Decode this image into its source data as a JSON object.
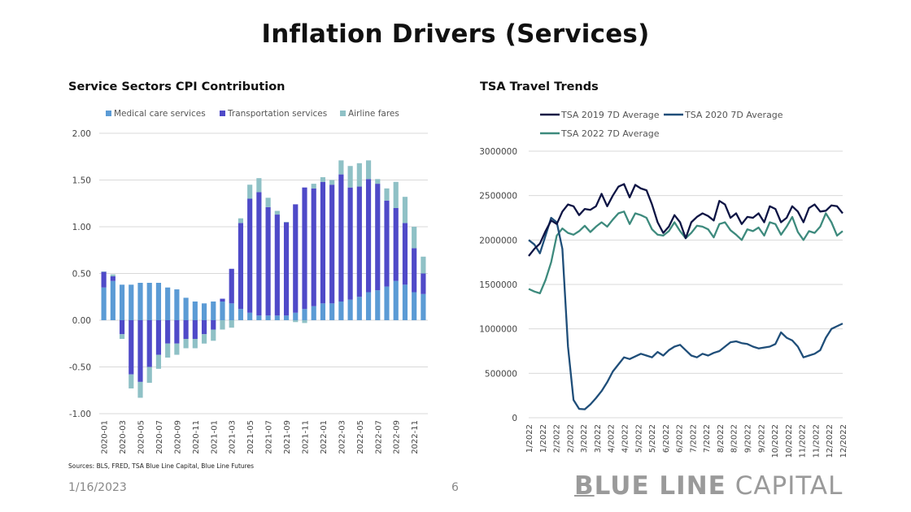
{
  "page": {
    "title": "Inflation Drivers (Services)",
    "sources": "Sources: BLS, FRED, TSA Blue Line Capital, Blue Line Futures",
    "date": "1/16/2023",
    "page_number": "6",
    "brand_bold": "BLUE LINE",
    "brand_light": "CAPITAL"
  },
  "colors": {
    "medical": "#5b9bd5",
    "transport": "#4f4ac8",
    "airline": "#8fc1c6",
    "tsa2019": "#0d1444",
    "tsa2020": "#1f4e79",
    "tsa2022": "#3d8a7d"
  },
  "chart_data": [
    {
      "type": "bar",
      "stacked": true,
      "title": "Service Sectors CPI Contribution",
      "ylim": [
        -1.0,
        2.0
      ],
      "yticks": [
        "2.00",
        "1.50",
        "1.00",
        "0.50",
        "0.00",
        "-0.50",
        "-1.00"
      ],
      "grid": true,
      "legend": "top",
      "categories": [
        "2020-01",
        "2020-02",
        "2020-03",
        "2020-04",
        "2020-05",
        "2020-06",
        "2020-07",
        "2020-08",
        "2020-09",
        "2020-10",
        "2020-11",
        "2020-12",
        "2021-01",
        "2021-02",
        "2021-03",
        "2021-04",
        "2021-05",
        "2021-06",
        "2021-07",
        "2021-08",
        "2021-09",
        "2021-10",
        "2021-11",
        "2021-12",
        "2022-01",
        "2022-02",
        "2022-03",
        "2022-04",
        "2022-05",
        "2022-06",
        "2022-07",
        "2022-08",
        "2022-09",
        "2022-10",
        "2022-11",
        "2022-12"
      ],
      "xtick_labels": [
        "2020-01",
        "2020-03",
        "2020-05",
        "2020-07",
        "2020-09",
        "2020-11",
        "2021-01",
        "2021-03",
        "2021-05",
        "2021-07",
        "2021-09",
        "2021-11",
        "2022-01",
        "2022-03",
        "2022-05",
        "2022-07",
        "2022-09",
        "2022-11"
      ],
      "series": [
        {
          "name": "Medical care services",
          "values": [
            0.35,
            0.42,
            0.38,
            0.38,
            0.4,
            0.4,
            0.4,
            0.35,
            0.33,
            0.24,
            0.2,
            0.18,
            0.2,
            0.2,
            0.18,
            0.12,
            0.08,
            0.05,
            0.05,
            0.05,
            0.05,
            0.08,
            0.12,
            0.15,
            0.18,
            0.18,
            0.2,
            0.22,
            0.25,
            0.3,
            0.32,
            0.36,
            0.42,
            0.38,
            0.3,
            0.28
          ]
        },
        {
          "name": "Transportation services",
          "values": [
            0.17,
            0.05,
            -0.15,
            -0.58,
            -0.66,
            -0.5,
            -0.37,
            -0.25,
            -0.25,
            -0.2,
            -0.2,
            -0.15,
            -0.1,
            0.03,
            0.37,
            0.92,
            1.22,
            1.32,
            1.16,
            1.08,
            1.0,
            1.16,
            1.3,
            1.26,
            1.3,
            1.27,
            1.36,
            1.2,
            1.18,
            1.21,
            1.14,
            0.92,
            0.78,
            0.66,
            0.47,
            0.22
          ]
        },
        {
          "name": "Airline fares",
          "values": [
            0.0,
            0.02,
            -0.05,
            -0.15,
            -0.17,
            -0.17,
            -0.15,
            -0.15,
            -0.12,
            -0.1,
            -0.1,
            -0.1,
            -0.12,
            -0.1,
            -0.08,
            0.05,
            0.15,
            0.15,
            0.1,
            0.04,
            0.0,
            -0.02,
            -0.03,
            0.05,
            0.05,
            0.05,
            0.15,
            0.23,
            0.25,
            0.2,
            0.05,
            0.13,
            0.28,
            0.28,
            0.23,
            0.18
          ]
        }
      ]
    },
    {
      "type": "line",
      "title": "TSA Travel Trends",
      "ylim": [
        0,
        3000000
      ],
      "yticks": [
        "3000000",
        "2500000",
        "2000000",
        "1500000",
        "1000000",
        "500000",
        "0"
      ],
      "grid": true,
      "legend": "top",
      "xtick_labels": [
        "1/2022",
        "1/2022",
        "2/2022",
        "2/2022",
        "3/2022",
        "3/2022",
        "4/2022",
        "4/2022",
        "5/2022",
        "5/2022",
        "6/2022",
        "6/2022",
        "7/2022",
        "7/2022",
        "8/2022",
        "8/2022",
        "9/2022",
        "9/2022",
        "10/2022",
        "10/2022",
        "11/2022",
        "11/2022",
        "12/2022",
        "12/2022"
      ],
      "x": [
        0,
        2,
        4,
        6,
        8,
        10,
        12,
        14,
        16,
        18,
        20,
        22,
        24,
        26,
        28,
        30,
        32,
        34,
        36,
        38,
        40,
        42,
        44,
        46,
        48,
        50,
        52
      ],
      "series": [
        {
          "name": "TSA 2019 7D Average",
          "values": [
            1820000,
            1900000,
            1960000,
            2100000,
            2220000,
            2180000,
            2320000,
            2400000,
            2380000,
            2280000,
            2350000,
            2340000,
            2380000,
            2520000,
            2380000,
            2500000,
            2600000,
            2630000,
            2480000,
            2620000,
            2580000,
            2560000,
            2400000,
            2200000,
            2080000,
            2150000,
            2280000
          ]
        },
        {
          "name": "TSA 2020 7D Average",
          "values": [
            2000000,
            1950000,
            1850000,
            2050000,
            2250000,
            2200000,
            1900000,
            800000,
            200000,
            100000,
            95000,
            150000,
            220000,
            300000,
            400000,
            520000,
            600000,
            680000,
            660000,
            690000,
            720000,
            700000,
            680000,
            740000,
            700000,
            760000,
            800000
          ]
        },
        {
          "name": "TSA 2022 7D Average",
          "values": [
            1450000,
            1420000,
            1400000,
            1550000,
            1750000,
            2050000,
            2130000,
            2080000,
            2060000,
            2100000,
            2160000,
            2090000,
            2150000,
            2200000,
            2150000,
            2230000,
            2300000,
            2320000,
            2180000,
            2300000,
            2280000,
            2250000,
            2120000,
            2060000,
            2050000,
            2100000,
            2200000
          ]
        }
      ],
      "extra_points": {
        "x": [
          54,
          56,
          58,
          60,
          62,
          64,
          66,
          68,
          70,
          72,
          74,
          76,
          78,
          80,
          82,
          84,
          86,
          88,
          90,
          92,
          94,
          96,
          98,
          100,
          102,
          104,
          106,
          108,
          110,
          112
        ],
        "tsa2019": [
          2200000,
          2020000,
          2200000,
          2260000,
          2300000,
          2270000,
          2220000,
          2440000,
          2400000,
          2250000,
          2300000,
          2180000,
          2260000,
          2250000,
          2300000,
          2200000,
          2380000,
          2350000,
          2200000,
          2250000,
          2380000,
          2320000,
          2200000,
          2360000,
          2400000,
          2320000,
          2330000,
          2390000,
          2380000,
          2300000
        ],
        "tsa2020": [
          820000,
          760000,
          700000,
          680000,
          720000,
          700000,
          730000,
          750000,
          800000,
          850000,
          860000,
          840000,
          830000,
          800000,
          780000,
          790000,
          800000,
          830000,
          960000,
          900000,
          870000,
          800000,
          680000,
          700000,
          720000,
          760000,
          900000,
          1000000,
          1030000,
          1060000
        ],
        "tsa2022": [
          2100000,
          2020000,
          2080000,
          2160000,
          2150000,
          2120000,
          2030000,
          2180000,
          2200000,
          2110000,
          2060000,
          2000000,
          2120000,
          2100000,
          2140000,
          2050000,
          2200000,
          2180000,
          2060000,
          2150000,
          2260000,
          2090000,
          2000000,
          2100000,
          2080000,
          2150000,
          2300000,
          2200000,
          2050000,
          2100000
        ]
      }
    }
  ]
}
